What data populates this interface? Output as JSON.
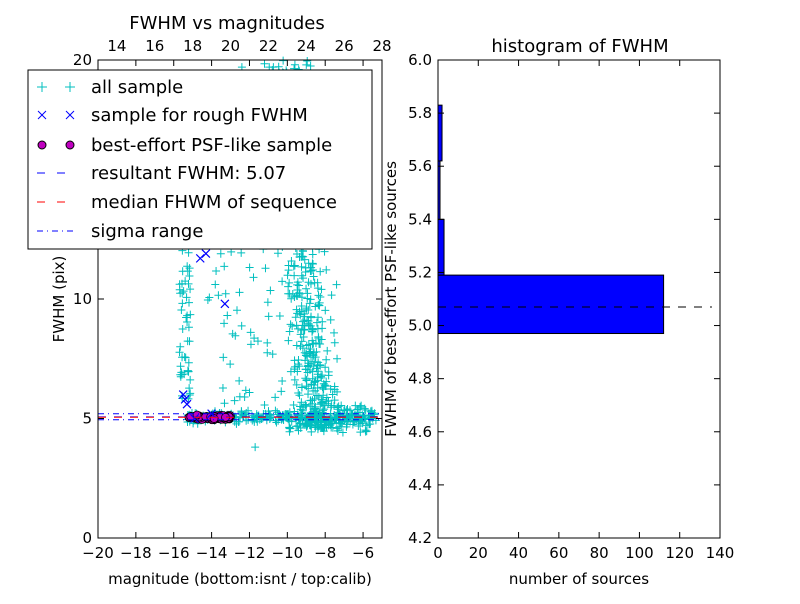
{
  "chart_data": [
    {
      "type": "scatter",
      "title": "FWHM vs magnitudes",
      "xlabel": "magnitude (bottom:isnt / top:calib)",
      "ylabel": "FWHM (pix)",
      "xlim": [
        -20,
        -5
      ],
      "ylim": [
        0,
        20
      ],
      "top_xlim": [
        13,
        28
      ],
      "x_ticks": [
        "−20",
        "−18",
        "−16",
        "−14",
        "−12",
        "−10",
        "−8",
        "−6"
      ],
      "x_tick_values": [
        -20,
        -18,
        -16,
        -14,
        -12,
        -10,
        -8,
        -6
      ],
      "top_ticks": [
        "14",
        "16",
        "18",
        "20",
        "22",
        "24",
        "26",
        "28"
      ],
      "top_tick_values": [
        14,
        16,
        18,
        20,
        22,
        24,
        26,
        28
      ],
      "y_ticks": [
        "0",
        "5",
        "10",
        "20"
      ],
      "y_tick_values": [
        0,
        5,
        10,
        20
      ],
      "legend": {
        "location": "upper-left",
        "entries": [
          {
            "label": "all sample",
            "marker": "+",
            "color": "#00bfbf"
          },
          {
            "label": "sample for rough FWHM",
            "marker": "x",
            "color": "#0000ff"
          },
          {
            "label": "best-effort PSF-like sample",
            "marker": "o",
            "color": "#bf00bf"
          },
          {
            "label": "resultant FWHM: 5.07",
            "style": "dashed",
            "color": "#0000ff"
          },
          {
            "label": "median FHWM of sequence",
            "style": "dashed",
            "color": "#ff0000"
          },
          {
            "label": "sigma range",
            "style": "dashdot",
            "color": "#0000ff"
          }
        ]
      },
      "series": [
        {
          "name": "sample for rough FWHM",
          "points": [
            [
              -14.6,
              11.7
            ],
            [
              -14.3,
              11.9
            ],
            [
              -13.3,
              9.8
            ],
            [
              -15.5,
              6.0
            ],
            [
              -15.3,
              5.6
            ],
            [
              -15.4,
              5.8
            ],
            [
              -14.9,
              5.0
            ],
            [
              -14.0,
              5.2
            ]
          ]
        },
        {
          "name": "best-effort PSF-like sample",
          "x_range": [
            -15.2,
            -13.0
          ],
          "y_center": 5.05,
          "count": 110
        },
        {
          "name": "all sample",
          "description_ranges": "dense cloud"
        }
      ],
      "lines": [
        {
          "name": "resultant FWHM",
          "y": 5.07,
          "color": "#0000ff",
          "style": "dashed"
        },
        {
          "name": "median FHWM of sequence",
          "y": 5.05,
          "color": "#ff0000",
          "style": "dashed"
        },
        {
          "name": "sigma range upper",
          "y": 5.2,
          "color": "#0000ff",
          "style": "dashdot"
        },
        {
          "name": "sigma range lower",
          "y": 4.95,
          "color": "#0000ff",
          "style": "dashdot"
        }
      ]
    },
    {
      "type": "bar",
      "orientation": "horizontal",
      "title": "histogram of FWHM",
      "xlabel": "number of sources",
      "ylabel": "FWHM of best-effort PSF-like sources",
      "xlim": [
        0,
        140
      ],
      "ylim": [
        4.2,
        6.0
      ],
      "x_ticks": [
        "0",
        "20",
        "40",
        "60",
        "80",
        "100",
        "120",
        "140"
      ],
      "x_tick_values": [
        0,
        20,
        40,
        60,
        80,
        100,
        120,
        140
      ],
      "y_ticks": [
        "4.2",
        "4.4",
        "4.6",
        "4.8",
        "5.0",
        "5.2",
        "5.4",
        "5.6",
        "5.8",
        "6.0"
      ],
      "y_tick_values": [
        4.2,
        4.4,
        4.6,
        4.8,
        5.0,
        5.2,
        5.4,
        5.6,
        5.8,
        6.0
      ],
      "bins": [
        {
          "low": 4.97,
          "high": 5.19,
          "count": 112
        },
        {
          "low": 5.19,
          "high": 5.4,
          "count": 3
        },
        {
          "low": 5.4,
          "high": 5.62,
          "count": 1
        },
        {
          "low": 5.62,
          "high": 5.83,
          "count": 2
        }
      ],
      "bar_color": "#0000ff",
      "reference_line": {
        "y": 5.07,
        "style": "dashed",
        "color": "#000000",
        "x_range": [
          0,
          136
        ]
      }
    }
  ]
}
